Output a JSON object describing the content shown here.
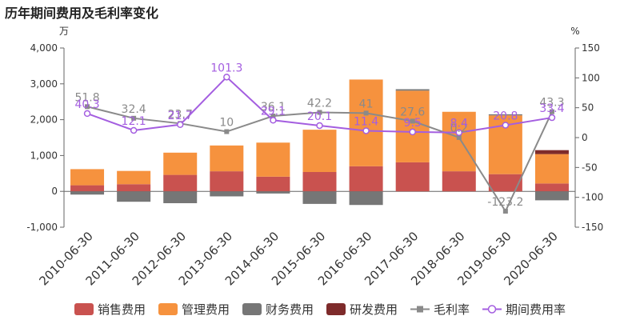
{
  "chart_data": {
    "type": "bar+line",
    "title": "历年期间费用及毛利率变化",
    "left_unit": "万",
    "right_unit": "%",
    "categories": [
      "2010-06-30",
      "2011-06-30",
      "2012-06-30",
      "2013-06-30",
      "2014-06-30",
      "2015-06-30",
      "2016-06-30",
      "2017-06-30",
      "2018-06-30",
      "2019-06-30",
      "2020-06-30"
    ],
    "left_axis": {
      "min": -1000,
      "max": 4000,
      "ticks": [
        -1000,
        0,
        1000,
        2000,
        3000,
        4000
      ],
      "tick_labels": [
        "-1,000",
        "0",
        "1,000",
        "2,000",
        "3,000",
        "4,000"
      ]
    },
    "right_axis": {
      "min": -150,
      "max": 150,
      "ticks": [
        -150,
        -100,
        -50,
        0,
        50,
        100,
        150
      ],
      "tick_labels": [
        "-150",
        "-100",
        "-50",
        "0",
        "50",
        "100",
        "150"
      ]
    },
    "bar_series": [
      {
        "name": "销售费用",
        "color": "#c9524f",
        "values": [
          170,
          200,
          460,
          560,
          410,
          540,
          700,
          810,
          560,
          480,
          220
        ]
      },
      {
        "name": "管理费用",
        "color": "#f6923e",
        "values": [
          450,
          370,
          620,
          720,
          950,
          1180,
          2420,
          2000,
          1660,
          1640,
          820
        ]
      },
      {
        "name": "财务费用",
        "color": "#767676",
        "values": [
          -90,
          -290,
          -330,
          -140,
          -60,
          -350,
          -380,
          40,
          0,
          30,
          -250
        ]
      },
      {
        "name": "研发费用",
        "color": "#7e2b2b",
        "values": [
          0,
          0,
          0,
          0,
          0,
          0,
          0,
          0,
          0,
          0,
          110
        ]
      }
    ],
    "line_series": [
      {
        "name": "毛利率",
        "color": "#8a8a8a",
        "marker": "square",
        "values": [
          51.8,
          32.4,
          23.7,
          10,
          36.1,
          42.2,
          41,
          27.6,
          0.2,
          -123.2,
          43.3
        ],
        "labels": [
          "51.8",
          "32.4",
          "23.7",
          "10",
          "36.1",
          "42.2",
          "41",
          "27.6",
          "0.2",
          "-123.2",
          "43.3"
        ]
      },
      {
        "name": "期间费用率",
        "color": "#a45ee0",
        "marker": "circle",
        "values": [
          40.3,
          12.1,
          21.7,
          101.3,
          29.1,
          20.1,
          11.4,
          9.5,
          8.4,
          20.8,
          33.4
        ],
        "labels": [
          "40.3",
          "12.1",
          "21.7",
          "101.3",
          "29.1",
          "20.1",
          "11.4",
          "9.5",
          "8.4",
          "20.8",
          "33.4"
        ]
      }
    ],
    "legend_position": "bottom",
    "grid": false
  }
}
